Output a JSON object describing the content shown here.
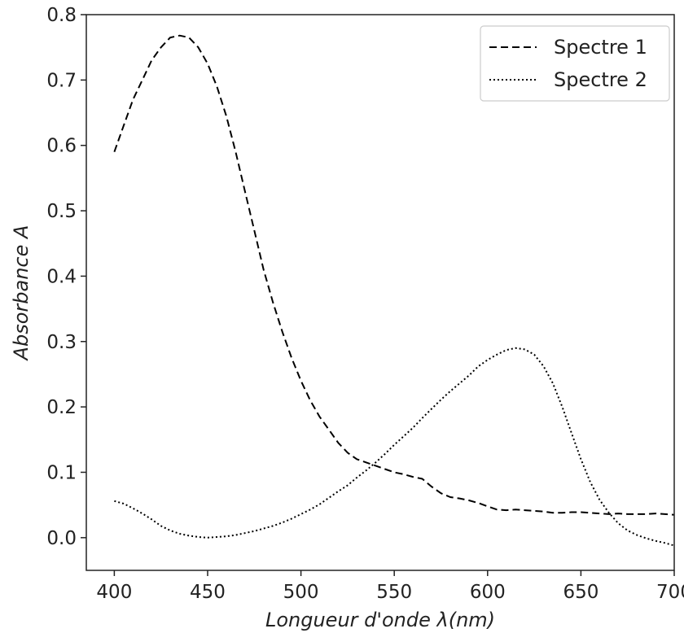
{
  "chart_data": {
    "type": "line",
    "title": "",
    "xlabel": "Longueur d'onde λ(nm)",
    "ylabel": "Absorbance A",
    "xlim": [
      385,
      700
    ],
    "ylim": [
      -0.05,
      0.8
    ],
    "xticks": [
      400,
      450,
      500,
      550,
      600,
      650,
      700
    ],
    "xtick_labels": [
      "400",
      "450",
      "500",
      "550",
      "600",
      "650",
      "700"
    ],
    "yticks": [
      0.0,
      0.1,
      0.2,
      0.3,
      0.4,
      0.5,
      0.6,
      0.7,
      0.8
    ],
    "ytick_labels": [
      "0.0",
      "0.1",
      "0.2",
      "0.3",
      "0.4",
      "0.5",
      "0.6",
      "0.7",
      "0.8"
    ],
    "grid": false,
    "legend_position": "top-right",
    "series": [
      {
        "name": "Spectre 1",
        "style": "dashed",
        "color": "#000000",
        "points": [
          [
            400,
            0.59
          ],
          [
            405,
            0.63
          ],
          [
            410,
            0.67
          ],
          [
            415,
            0.7
          ],
          [
            420,
            0.73
          ],
          [
            425,
            0.75
          ],
          [
            430,
            0.765
          ],
          [
            435,
            0.768
          ],
          [
            440,
            0.765
          ],
          [
            445,
            0.75
          ],
          [
            450,
            0.725
          ],
          [
            455,
            0.69
          ],
          [
            460,
            0.645
          ],
          [
            465,
            0.59
          ],
          [
            470,
            0.53
          ],
          [
            475,
            0.47
          ],
          [
            480,
            0.41
          ],
          [
            485,
            0.36
          ],
          [
            490,
            0.315
          ],
          [
            495,
            0.275
          ],
          [
            500,
            0.24
          ],
          [
            505,
            0.21
          ],
          [
            510,
            0.185
          ],
          [
            515,
            0.165
          ],
          [
            520,
            0.145
          ],
          [
            525,
            0.13
          ],
          [
            530,
            0.12
          ],
          [
            535,
            0.115
          ],
          [
            540,
            0.11
          ],
          [
            545,
            0.105
          ],
          [
            550,
            0.1
          ],
          [
            555,
            0.097
          ],
          [
            560,
            0.093
          ],
          [
            565,
            0.09
          ],
          [
            570,
            0.078
          ],
          [
            575,
            0.068
          ],
          [
            580,
            0.062
          ],
          [
            585,
            0.06
          ],
          [
            590,
            0.057
          ],
          [
            595,
            0.053
          ],
          [
            600,
            0.048
          ],
          [
            605,
            0.043
          ],
          [
            610,
            0.042
          ],
          [
            615,
            0.043
          ],
          [
            620,
            0.042
          ],
          [
            625,
            0.041
          ],
          [
            630,
            0.04
          ],
          [
            635,
            0.038
          ],
          [
            640,
            0.038
          ],
          [
            645,
            0.039
          ],
          [
            650,
            0.039
          ],
          [
            655,
            0.038
          ],
          [
            660,
            0.037
          ],
          [
            665,
            0.036
          ],
          [
            670,
            0.037
          ],
          [
            675,
            0.036
          ],
          [
            680,
            0.036
          ],
          [
            685,
            0.036
          ],
          [
            690,
            0.037
          ],
          [
            695,
            0.036
          ],
          [
            700,
            0.035
          ]
        ]
      },
      {
        "name": "Spectre 2",
        "style": "dotted",
        "color": "#000000",
        "points": [
          [
            400,
            0.056
          ],
          [
            405,
            0.052
          ],
          [
            410,
            0.045
          ],
          [
            415,
            0.037
          ],
          [
            420,
            0.028
          ],
          [
            425,
            0.018
          ],
          [
            430,
            0.011
          ],
          [
            435,
            0.006
          ],
          [
            440,
            0.003
          ],
          [
            445,
            0.001
          ],
          [
            450,
            0.0
          ],
          [
            455,
            0.001
          ],
          [
            460,
            0.002
          ],
          [
            465,
            0.004
          ],
          [
            470,
            0.007
          ],
          [
            475,
            0.01
          ],
          [
            480,
            0.014
          ],
          [
            485,
            0.018
          ],
          [
            490,
            0.023
          ],
          [
            495,
            0.029
          ],
          [
            500,
            0.036
          ],
          [
            505,
            0.043
          ],
          [
            510,
            0.051
          ],
          [
            515,
            0.061
          ],
          [
            520,
            0.071
          ],
          [
            525,
            0.08
          ],
          [
            530,
            0.092
          ],
          [
            535,
            0.103
          ],
          [
            540,
            0.115
          ],
          [
            545,
            0.128
          ],
          [
            550,
            0.142
          ],
          [
            555,
            0.155
          ],
          [
            560,
            0.168
          ],
          [
            565,
            0.183
          ],
          [
            570,
            0.197
          ],
          [
            575,
            0.211
          ],
          [
            580,
            0.224
          ],
          [
            585,
            0.236
          ],
          [
            590,
            0.248
          ],
          [
            595,
            0.262
          ],
          [
            600,
            0.272
          ],
          [
            605,
            0.28
          ],
          [
            610,
            0.287
          ],
          [
            615,
            0.29
          ],
          [
            620,
            0.288
          ],
          [
            625,
            0.28
          ],
          [
            630,
            0.262
          ],
          [
            635,
            0.236
          ],
          [
            640,
            0.2
          ],
          [
            645,
            0.16
          ],
          [
            650,
            0.12
          ],
          [
            655,
            0.085
          ],
          [
            660,
            0.058
          ],
          [
            665,
            0.038
          ],
          [
            670,
            0.022
          ],
          [
            675,
            0.011
          ],
          [
            680,
            0.004
          ],
          [
            685,
            -0.001
          ],
          [
            690,
            -0.005
          ],
          [
            695,
            -0.008
          ],
          [
            700,
            -0.012
          ]
        ]
      }
    ]
  }
}
